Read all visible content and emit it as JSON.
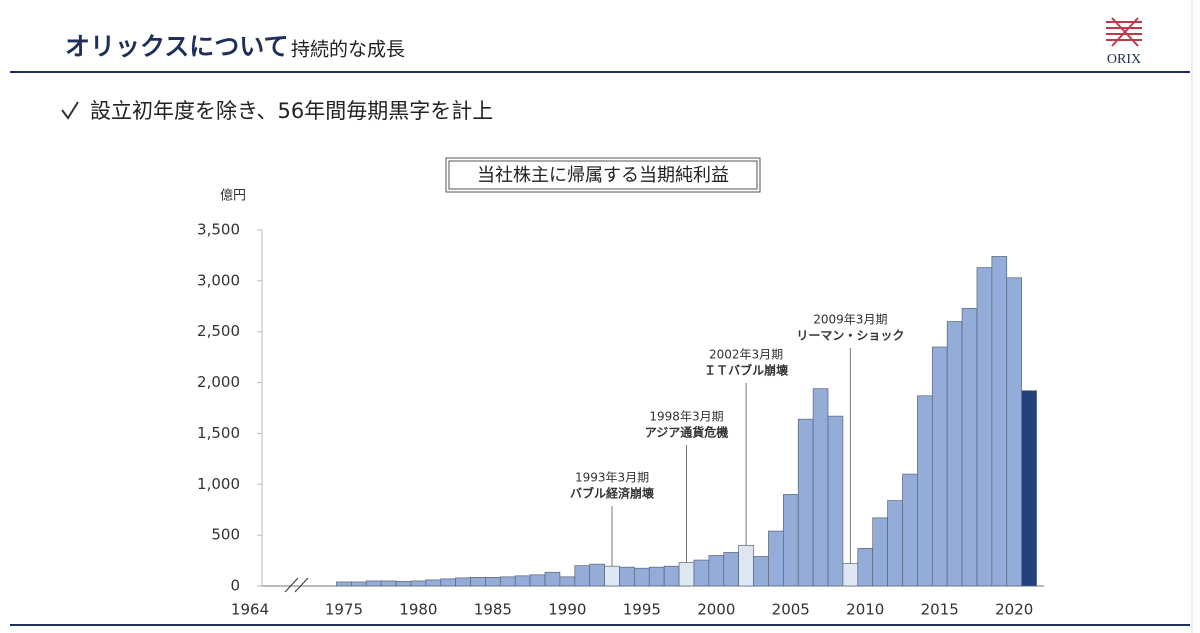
{
  "header": {
    "title": "オリックスについて",
    "subtitle": "持続的な成長",
    "logo": "ORIX"
  },
  "bullet": "設立初年度を除き、56年間毎期黒字を計上",
  "chart_data": {
    "type": "bar",
    "title": "当社株主に帰属する当期純利益",
    "y_unit": "億円",
    "x": [
      1975,
      1976,
      1977,
      1978,
      1979,
      1980,
      1981,
      1982,
      1983,
      1984,
      1985,
      1986,
      1987,
      1988,
      1989,
      1990,
      1991,
      1992,
      1993,
      1994,
      1995,
      1996,
      1997,
      1998,
      1999,
      2000,
      2001,
      2002,
      2003,
      2004,
      2005,
      2006,
      2007,
      2008,
      2009,
      2010,
      2011,
      2012,
      2013,
      2014,
      2015,
      2016,
      2017,
      2018,
      2019,
      2020,
      2021
    ],
    "values": [
      40,
      40,
      50,
      50,
      45,
      50,
      60,
      70,
      80,
      85,
      85,
      90,
      100,
      110,
      135,
      90,
      200,
      215,
      195,
      185,
      175,
      185,
      195,
      230,
      255,
      300,
      330,
      400,
      290,
      540,
      900,
      1640,
      1940,
      1670,
      220,
      370,
      670,
      840,
      1100,
      1870,
      2350,
      2600,
      2730,
      3130,
      3240,
      3030,
      1920
    ],
    "colors": [
      "#94acd8",
      "#94acd8",
      "#94acd8",
      "#94acd8",
      "#94acd8",
      "#94acd8",
      "#94acd8",
      "#94acd8",
      "#94acd8",
      "#94acd8",
      "#94acd8",
      "#94acd8",
      "#94acd8",
      "#94acd8",
      "#94acd8",
      "#94acd8",
      "#94acd8",
      "#94acd8",
      "#dde7f2",
      "#94acd8",
      "#94acd8",
      "#94acd8",
      "#94acd8",
      "#dde7f2",
      "#94acd8",
      "#94acd8",
      "#94acd8",
      "#dde7f2",
      "#94acd8",
      "#94acd8",
      "#94acd8",
      "#94acd8",
      "#94acd8",
      "#94acd8",
      "#dde7f2",
      "#94acd8",
      "#94acd8",
      "#94acd8",
      "#94acd8",
      "#94acd8",
      "#94acd8",
      "#94acd8",
      "#94acd8",
      "#94acd8",
      "#94acd8",
      "#94acd8",
      "#24427a"
    ],
    "annotations": [
      {
        "lines": [
          "1993年3月期",
          "バブル経済崩壊"
        ]
      },
      {
        "lines": [
          "1998年3月期",
          "アジア通貨危機"
        ]
      },
      {
        "lines": [
          "2002年3月期",
          "ＩＴバブル崩壊"
        ]
      },
      {
        "lines": [
          "2009年3月期",
          "リーマン・ショック"
        ]
      }
    ],
    "xlim": [
      1969.5,
      2022
    ],
    "xticks": [
      1964,
      1975,
      1980,
      1985,
      1990,
      1995,
      2000,
      2005,
      2010,
      2015,
      2020
    ],
    "axis_break": true,
    "ylim": [
      0,
      3500
    ],
    "yticks": [
      0,
      500,
      {
        "value": 1000,
        "label": "1,000"
      },
      {
        "value": 1500,
        "label": "1,500"
      },
      {
        "value": 2000,
        "label": "2,000"
      },
      {
        "value": 2500,
        "label": "2,500"
      },
      {
        "value": 3000,
        "label": "3,000"
      },
      {
        "value": 3500,
        "label": "3,500"
      }
    ],
    "grid": false
  }
}
